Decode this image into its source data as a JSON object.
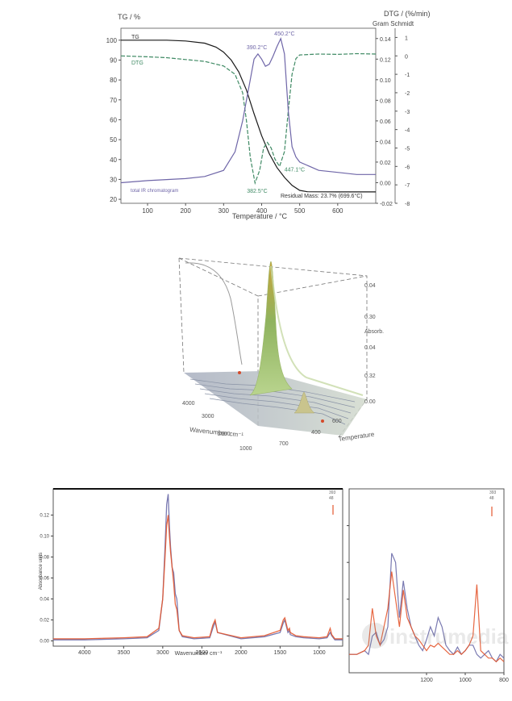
{
  "chart_data": [
    {
      "id": "tga",
      "type": "line",
      "title": "",
      "xlabel": "Temperature / °C",
      "ylabel_left": "TG / %",
      "ylabel_right": "DTG / (%/min)",
      "ylabel_right2": "Gram Schmidt",
      "xlim": [
        30,
        700
      ],
      "ylim_left": [
        18,
        106
      ],
      "ylim_right": [
        -8,
        1.5
      ],
      "ylim_right2": [
        -0.02,
        0.15
      ],
      "x_ticks": [
        100,
        200,
        300,
        400,
        500,
        600
      ],
      "y_ticks_left": [
        20,
        30,
        40,
        50,
        60,
        70,
        80,
        90,
        100
      ],
      "y_ticks_right": [
        1,
        0,
        -1,
        -2,
        -3,
        -4,
        -5,
        -6,
        -7,
        -8
      ],
      "y_ticks_right2": [
        0.14,
        0.12,
        0.1,
        0.08,
        0.06,
        0.04,
        0.02,
        0.0,
        -0.02
      ],
      "series": [
        {
          "name": "TG",
          "axis": "left",
          "color": "#1a1a1a",
          "style": "solid",
          "x": [
            30,
            100,
            150,
            200,
            250,
            280,
            300,
            320,
            340,
            360,
            380,
            400,
            420,
            440,
            460,
            480,
            500,
            520,
            600,
            700
          ],
          "y": [
            100,
            100,
            100,
            99.6,
            98.5,
            96.5,
            94,
            90,
            84,
            75,
            63,
            52,
            43,
            36,
            31,
            27,
            24.5,
            23.8,
            23.7,
            23.7
          ]
        },
        {
          "name": "DTG",
          "axis": "right",
          "color": "#3f8a64",
          "style": "dashed",
          "x": [
            30,
            100,
            150,
            200,
            250,
            300,
            330,
            350,
            360,
            370,
            382.5,
            395,
            405,
            415,
            425,
            435,
            447.1,
            460,
            470,
            480,
            490,
            500,
            550,
            600,
            650,
            700
          ],
          "y": [
            0,
            -0.05,
            -0.1,
            -0.2,
            -0.3,
            -0.55,
            -1.0,
            -2.0,
            -3.5,
            -5.5,
            -6.9,
            -6.2,
            -5.0,
            -4.7,
            -5.0,
            -5.6,
            -6.0,
            -5.2,
            -3.0,
            -1.0,
            -0.15,
            0.05,
            0.1,
            0.08,
            0.12,
            0.1
          ]
        },
        {
          "name": "total IR chromatogram",
          "axis": "right2",
          "color": "#6f66a8",
          "style": "solid",
          "x": [
            30,
            100,
            150,
            200,
            250,
            300,
            330,
            350,
            370,
            380,
            390.2,
            400,
            410,
            420,
            430,
            440,
            450.2,
            460,
            470,
            480,
            490,
            500,
            550,
            600,
            650,
            700
          ],
          "y": [
            0.0,
            0.002,
            0.003,
            0.004,
            0.006,
            0.012,
            0.03,
            0.06,
            0.1,
            0.12,
            0.125,
            0.12,
            0.113,
            0.115,
            0.123,
            0.132,
            0.14,
            0.125,
            0.07,
            0.035,
            0.025,
            0.02,
            0.012,
            0.01,
            0.008,
            0.008
          ]
        }
      ],
      "annotations": [
        {
          "text": "390.2°C",
          "x": 390.2,
          "axis": "right2",
          "y": 0.125
        },
        {
          "text": "450.2°C",
          "x": 450.2,
          "axis": "right2",
          "y": 0.14
        },
        {
          "text": "382.5°C",
          "x": 382.5,
          "axis": "right",
          "y": -6.9
        },
        {
          "text": "447.1°C",
          "x": 447.1,
          "axis": "right",
          "y": -6.0
        },
        {
          "text": "Residual Mass: 23.7% (699.6°C)"
        }
      ]
    },
    {
      "id": "ir-3d",
      "type": "3d-surface",
      "title": "",
      "labels": {
        "x": "Wavenumber cm⁻¹",
        "y": "Temperature",
        "z": "Absorb."
      },
      "wavenumber_ticks": [
        "4000",
        "3000",
        "2000",
        "1000"
      ],
      "temperature_ticks": [
        "700",
        "400",
        "600"
      ],
      "absorbance_ticks": [
        "0.04",
        "0.30",
        "0.04",
        "0.32",
        "0.00"
      ],
      "peaks": [
        {
          "wavenumber": 2930,
          "temperature": 450,
          "absorbance": 0.34,
          "color": "#c8a43a"
        },
        {
          "wavenumber": 1450,
          "temperature": 450,
          "absorbance": 0.06
        }
      ]
    },
    {
      "id": "ir-left",
      "type": "line",
      "title": "",
      "xlabel": "Wavenumber cm⁻¹",
      "ylabel": "Absorbance units",
      "xlim": [
        4400,
        700
      ],
      "ylim": [
        -0.005,
        0.145
      ],
      "x_ticks": [
        4000,
        3500,
        3000,
        2500,
        2000,
        1500,
        1000
      ],
      "y_ticks": [
        "0.00",
        "0.02",
        "0.04",
        "0.06",
        "0.08",
        "0.10",
        "0.12"
      ],
      "legend_lines": [
        "393",
        "48"
      ],
      "series": [
        {
          "color": "#6a6aa8",
          "x": [
            4400,
            4000,
            3500,
            3200,
            3050,
            3000,
            2970,
            2950,
            2930,
            2915,
            2900,
            2880,
            2860,
            2840,
            2820,
            2790,
            2750,
            2600,
            2400,
            2360,
            2330,
            2300,
            2000,
            1700,
            1500,
            1460,
            1440,
            1400,
            1380,
            1370,
            1300,
            1200,
            1000,
            900,
            860,
            840,
            800,
            700
          ],
          "y": [
            0.001,
            0.001,
            0.002,
            0.003,
            0.01,
            0.04,
            0.09,
            0.13,
            0.14,
            0.11,
            0.09,
            0.07,
            0.065,
            0.045,
            0.04,
            0.01,
            0.004,
            0.002,
            0.003,
            0.012,
            0.018,
            0.008,
            0.002,
            0.004,
            0.008,
            0.017,
            0.02,
            0.008,
            0.01,
            0.006,
            0.004,
            0.003,
            0.002,
            0.003,
            0.008,
            0.005,
            0.001,
            0.001
          ]
        },
        {
          "color": "#e4572e",
          "x": [
            4400,
            4000,
            3500,
            3200,
            3050,
            3000,
            2970,
            2950,
            2930,
            2915,
            2900,
            2880,
            2860,
            2840,
            2820,
            2790,
            2750,
            2600,
            2400,
            2360,
            2330,
            2300,
            2000,
            1700,
            1500,
            1460,
            1440,
            1400,
            1380,
            1370,
            1300,
            1200,
            1000,
            900,
            860,
            840,
            800,
            700
          ],
          "y": [
            0.002,
            0.002,
            0.003,
            0.004,
            0.012,
            0.04,
            0.08,
            0.11,
            0.12,
            0.1,
            0.085,
            0.07,
            0.055,
            0.035,
            0.03,
            0.01,
            0.005,
            0.003,
            0.004,
            0.015,
            0.02,
            0.008,
            0.003,
            0.005,
            0.01,
            0.02,
            0.022,
            0.01,
            0.012,
            0.008,
            0.005,
            0.004,
            0.003,
            0.004,
            0.012,
            0.006,
            0.002,
            0.002
          ]
        }
      ]
    },
    {
      "id": "ir-right",
      "type": "line",
      "title": "",
      "xlabel": "",
      "xlim": [
        1600,
        800
      ],
      "ylim": [
        0,
        1
      ],
      "x_ticks": [
        1200,
        1000,
        800
      ],
      "legend_lines": [
        "393",
        "48"
      ],
      "series": [
        {
          "color": "#6a6aa8",
          "x": [
            1600,
            1560,
            1520,
            1500,
            1480,
            1460,
            1440,
            1420,
            1400,
            1380,
            1360,
            1340,
            1320,
            1300,
            1280,
            1260,
            1240,
            1220,
            1200,
            1180,
            1160,
            1140,
            1120,
            1100,
            1080,
            1060,
            1040,
            1020,
            1000,
            980,
            960,
            940,
            920,
            900,
            880,
            860,
            840,
            820,
            800
          ],
          "y": [
            0.1,
            0.1,
            0.12,
            0.1,
            0.2,
            0.22,
            0.15,
            0.18,
            0.25,
            0.65,
            0.6,
            0.3,
            0.5,
            0.35,
            0.25,
            0.2,
            0.15,
            0.12,
            0.18,
            0.25,
            0.2,
            0.3,
            0.25,
            0.15,
            0.12,
            0.1,
            0.14,
            0.1,
            0.12,
            0.15,
            0.15,
            0.1,
            0.08,
            0.1,
            0.12,
            0.08,
            0.06,
            0.1,
            0.08
          ]
        },
        {
          "color": "#e4572e",
          "x": [
            1600,
            1560,
            1520,
            1500,
            1480,
            1460,
            1440,
            1420,
            1400,
            1380,
            1360,
            1340,
            1320,
            1300,
            1280,
            1260,
            1240,
            1220,
            1200,
            1180,
            1160,
            1140,
            1120,
            1100,
            1080,
            1060,
            1040,
            1020,
            1000,
            980,
            960,
            940,
            920,
            900,
            880,
            860,
            840,
            820,
            800
          ],
          "y": [
            0.1,
            0.1,
            0.12,
            0.15,
            0.35,
            0.2,
            0.15,
            0.25,
            0.35,
            0.55,
            0.4,
            0.25,
            0.45,
            0.3,
            0.25,
            0.2,
            0.18,
            0.15,
            0.12,
            0.15,
            0.14,
            0.16,
            0.14,
            0.12,
            0.1,
            0.1,
            0.12,
            0.1,
            0.12,
            0.15,
            0.2,
            0.48,
            0.12,
            0.1,
            0.08,
            0.08,
            0.06,
            0.08,
            0.06
          ]
        }
      ]
    }
  ]
}
